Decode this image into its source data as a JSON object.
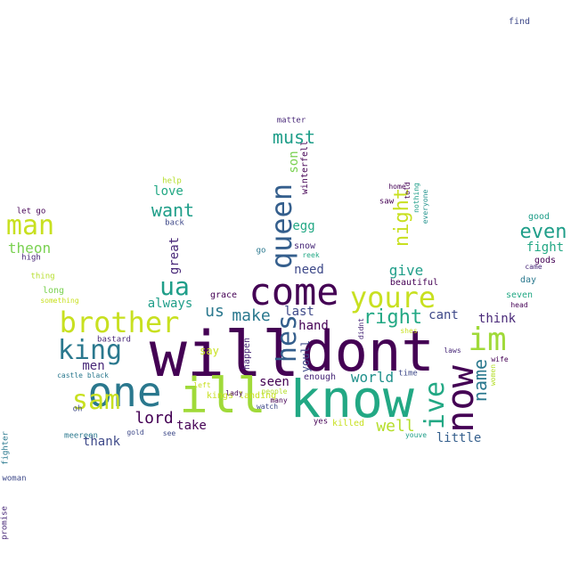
{
  "word_cloud": {
    "words": [
      {
        "text": "will",
        "color": "#440154"
      },
      {
        "text": "dont",
        "color": "#440154"
      },
      {
        "text": "know",
        "color": "#22a884"
      },
      {
        "text": "ill",
        "color": "#a0da39"
      },
      {
        "text": "one",
        "color": "#2a788e"
      },
      {
        "text": "now",
        "color": "#440154"
      },
      {
        "text": "im",
        "color": "#a0da39"
      },
      {
        "text": "come",
        "color": "#440154"
      },
      {
        "text": "youre",
        "color": "#c8e020"
      },
      {
        "text": "brother",
        "color": "#c8e020"
      },
      {
        "text": "king",
        "color": "#2a788e"
      },
      {
        "text": "queen",
        "color": "#355f8d"
      },
      {
        "text": "ive",
        "color": "#22a884"
      },
      {
        "text": "man",
        "color": "#c8e020"
      },
      {
        "text": "sam",
        "color": "#c8e020"
      },
      {
        "text": "hes",
        "color": "#355f8d"
      },
      {
        "text": "ua",
        "color": "#1f9e89"
      },
      {
        "text": "right",
        "color": "#22a884"
      },
      {
        "text": "night",
        "color": "#c8e020"
      },
      {
        "text": "even",
        "color": "#1f9e89"
      },
      {
        "text": "must",
        "color": "#1f9e89"
      },
      {
        "text": "name",
        "color": "#2a788e"
      },
      {
        "text": "want",
        "color": "#1f9e89"
      },
      {
        "text": "make",
        "color": "#2a788e"
      },
      {
        "text": "lord",
        "color": "#440154"
      },
      {
        "text": "well",
        "color": "#b5de2b"
      },
      {
        "text": "us",
        "color": "#2a788e"
      },
      {
        "text": "theon",
        "color": "#7ad151"
      },
      {
        "text": "son",
        "color": "#7ad151"
      },
      {
        "text": "little",
        "color": "#355f8d"
      },
      {
        "text": "give",
        "color": "#1f9e89"
      },
      {
        "text": "world",
        "color": "#21918c"
      },
      {
        "text": "fight",
        "color": "#22a884"
      },
      {
        "text": "take",
        "color": "#440154"
      },
      {
        "text": "men",
        "color": "#482878"
      },
      {
        "text": "thank",
        "color": "#3e4989"
      },
      {
        "text": "seen",
        "color": "#440154"
      },
      {
        "text": "hand",
        "color": "#440154"
      },
      {
        "text": "need",
        "color": "#3e4989"
      },
      {
        "text": "think",
        "color": "#482878"
      },
      {
        "text": "cant",
        "color": "#3e4989"
      },
      {
        "text": "last",
        "color": "#3e4989"
      },
      {
        "text": "always",
        "color": "#1f9e89"
      },
      {
        "text": "love",
        "color": "#22a884"
      },
      {
        "text": "great",
        "color": "#482878"
      },
      {
        "text": "egg",
        "color": "#22a884"
      },
      {
        "text": "youll",
        "color": "#3e4989"
      },
      {
        "text": "say",
        "color": "#c8e020"
      },
      {
        "text": "winterfell",
        "color": "#440154"
      },
      {
        "text": "long",
        "color": "#7ad151"
      },
      {
        "text": "grace",
        "color": "#440154"
      },
      {
        "text": "seven",
        "color": "#22a884"
      },
      {
        "text": "gods",
        "color": "#440154"
      },
      {
        "text": "good",
        "color": "#1f9e89"
      },
      {
        "text": "day",
        "color": "#2a788e"
      },
      {
        "text": "kings landing",
        "color": "#c8e020"
      },
      {
        "text": "enough",
        "color": "#482878"
      },
      {
        "text": "killed",
        "color": "#c8e020"
      },
      {
        "text": "happen",
        "color": "#482878"
      },
      {
        "text": "beautiful",
        "color": "#440154"
      },
      {
        "text": "snow",
        "color": "#482878"
      },
      {
        "text": "matter",
        "color": "#482878"
      },
      {
        "text": "find",
        "color": "#3e4989"
      },
      {
        "text": "help",
        "color": "#b5de2b"
      },
      {
        "text": "back",
        "color": "#3e4989"
      },
      {
        "text": "let go",
        "color": "#440154"
      },
      {
        "text": "high",
        "color": "#482878"
      },
      {
        "text": "thing",
        "color": "#b5de2b"
      },
      {
        "text": "something",
        "color": "#c8e020"
      },
      {
        "text": "meereen",
        "color": "#2a788e"
      },
      {
        "text": "bastard",
        "color": "#482878"
      },
      {
        "text": "castle black",
        "color": "#2a788e"
      },
      {
        "text": "oh",
        "color": "#3e4989"
      },
      {
        "text": "gold",
        "color": "#3e4989"
      },
      {
        "text": "see",
        "color": "#3e4989"
      },
      {
        "text": "fighter",
        "color": "#2a788e"
      },
      {
        "text": "woman",
        "color": "#3e4989"
      },
      {
        "text": "promise",
        "color": "#482878"
      },
      {
        "text": "home",
        "color": "#440154"
      },
      {
        "text": "saw",
        "color": "#440154"
      },
      {
        "text": "nothing",
        "color": "#1f9e89"
      },
      {
        "text": "told",
        "color": "#440154"
      },
      {
        "text": "everyone",
        "color": "#21918c"
      },
      {
        "text": "reek",
        "color": "#22a884"
      },
      {
        "text": "go",
        "color": "#2a788e"
      },
      {
        "text": "left",
        "color": "#c8e020"
      },
      {
        "text": "lady",
        "color": "#440154"
      },
      {
        "text": "people",
        "color": "#b5de2b"
      },
      {
        "text": "watch",
        "color": "#3e4989"
      },
      {
        "text": "many",
        "color": "#440154"
      },
      {
        "text": "yes",
        "color": "#440154"
      },
      {
        "text": "shes",
        "color": "#c8e020"
      },
      {
        "text": "didnt",
        "color": "#482878"
      },
      {
        "text": "time",
        "color": "#3e4989"
      },
      {
        "text": "laws",
        "color": "#482878"
      },
      {
        "text": "youve",
        "color": "#1f9e89"
      },
      {
        "text": "wife",
        "color": "#440154"
      },
      {
        "text": "women",
        "color": "#b5de2b"
      },
      {
        "text": "came",
        "color": "#482878"
      },
      {
        "text": "head",
        "color": "#440154"
      }
    ]
  }
}
